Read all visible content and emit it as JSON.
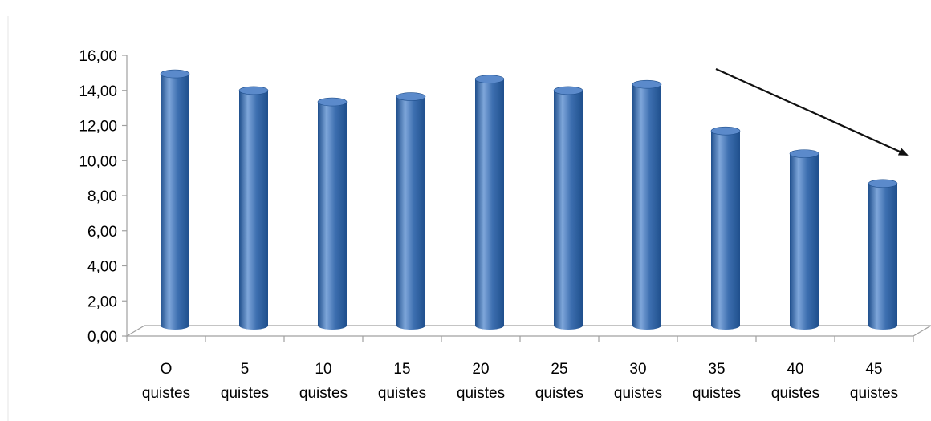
{
  "chart_data": {
    "type": "bar",
    "title": "",
    "xlabel": "",
    "ylabel": "",
    "categories": [
      [
        "O",
        "quistes"
      ],
      [
        "5",
        "quistes"
      ],
      [
        "10",
        "quistes"
      ],
      [
        "15",
        "quistes"
      ],
      [
        "20",
        "quistes"
      ],
      [
        "25",
        "quistes"
      ],
      [
        "30",
        "quistes"
      ],
      [
        "35",
        "quistes"
      ],
      [
        "40",
        "quistes"
      ],
      [
        "45",
        "quistes"
      ]
    ],
    "values": [
      14.35,
      13.4,
      12.75,
      13.05,
      14.05,
      13.4,
      13.75,
      11.1,
      9.8,
      8.1
    ],
    "ylim": [
      0,
      16
    ],
    "yticks": [
      "0,00",
      "2,00",
      "4,00",
      "6,00",
      "8,00",
      "10,00",
      "12,00",
      "14,00",
      "16,00"
    ],
    "legend": "none",
    "grid": false,
    "bar_style": "3d-cylinder",
    "colors": {
      "bar": "#3d6fb0",
      "bar_light": "#7ea6da",
      "bar_dark": "#1f4f8c",
      "top": "#5b8acb",
      "axis": "#a0a0a0",
      "arrow": "#111111"
    },
    "annotations": [
      {
        "type": "trend-arrow",
        "direction": "downward"
      }
    ]
  }
}
